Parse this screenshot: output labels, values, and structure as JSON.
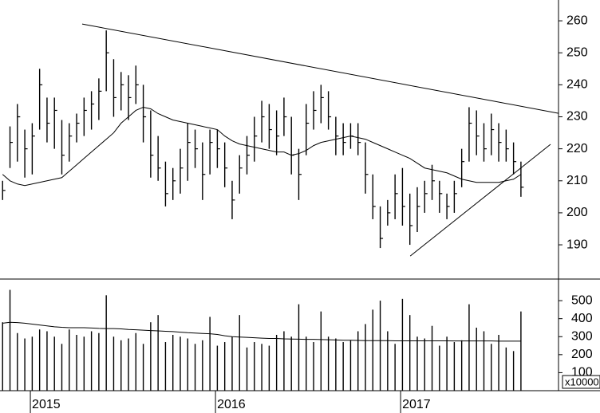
{
  "chart_data": [
    {
      "type": "hlc",
      "x": [
        2014.85,
        2014.89,
        2014.93,
        2014.97,
        2015.01,
        2015.05,
        2015.09,
        2015.13,
        2015.17,
        2015.21,
        2015.25,
        2015.29,
        2015.33,
        2015.37,
        2015.41,
        2015.45,
        2015.49,
        2015.53,
        2015.57,
        2015.61,
        2015.65,
        2015.69,
        2015.73,
        2015.77,
        2015.81,
        2015.85,
        2015.89,
        2015.93,
        2015.97,
        2016.01,
        2016.05,
        2016.09,
        2016.13,
        2016.17,
        2016.21,
        2016.25,
        2016.29,
        2016.33,
        2016.37,
        2016.41,
        2016.45,
        2016.49,
        2016.53,
        2016.57,
        2016.61,
        2016.65,
        2016.69,
        2016.73,
        2016.77,
        2016.81,
        2016.85,
        2016.89,
        2016.93,
        2016.97,
        2017.01,
        2017.05,
        2017.09,
        2017.13,
        2017.17,
        2017.21,
        2017.25,
        2017.29,
        2017.33,
        2017.37,
        2017.41,
        2017.45,
        2017.49,
        2017.53,
        2017.57,
        2017.61,
        2017.65
      ],
      "high": [
        210,
        227,
        234,
        226,
        228,
        245,
        236,
        236,
        229,
        228,
        231,
        236,
        238,
        242,
        257,
        248,
        244,
        243,
        246,
        240,
        232,
        224,
        216,
        214,
        220,
        228,
        226,
        222,
        226,
        226,
        222,
        210,
        218,
        224,
        230,
        235,
        234,
        232,
        236,
        230,
        220,
        234,
        238,
        240,
        238,
        230,
        228,
        228,
        228,
        222,
        212,
        202,
        204,
        212,
        214,
        206,
        208,
        210,
        215,
        210,
        206,
        210,
        220,
        233,
        232,
        228,
        231,
        228,
        226,
        222,
        216
      ],
      "low": [
        204,
        214,
        216,
        211,
        212,
        226,
        222,
        220,
        212,
        216,
        222,
        224,
        226,
        229,
        238,
        230,
        232,
        229,
        234,
        222,
        211,
        210,
        202,
        204,
        206,
        210,
        214,
        204,
        212,
        214,
        208,
        198,
        206,
        212,
        216,
        222,
        220,
        218,
        224,
        212,
        204,
        218,
        226,
        228,
        226,
        218,
        218,
        220,
        218,
        206,
        198,
        189,
        196,
        198,
        196,
        190,
        194,
        200,
        204,
        200,
        198,
        200,
        208,
        216,
        218,
        216,
        218,
        216,
        216,
        212,
        205
      ],
      "close": [
        207,
        222,
        230,
        220,
        224,
        240,
        228,
        232,
        218,
        224,
        228,
        232,
        234,
        238,
        250,
        236,
        240,
        236,
        240,
        230,
        218,
        214,
        206,
        210,
        214,
        222,
        220,
        212,
        222,
        220,
        214,
        204,
        214,
        218,
        224,
        230,
        226,
        224,
        230,
        218,
        212,
        228,
        232,
        236,
        230,
        224,
        222,
        224,
        222,
        212,
        202,
        192,
        200,
        206,
        202,
        196,
        202,
        206,
        210,
        206,
        202,
        206,
        216,
        228,
        224,
        220,
        226,
        222,
        220,
        216,
        208
      ],
      "ma": [
        212,
        210,
        209,
        208.5,
        209,
        209.5,
        210,
        210.5,
        211,
        213,
        215,
        217,
        219,
        221,
        223,
        225,
        228,
        230,
        232,
        233,
        232.5,
        231,
        230,
        229,
        228.5,
        228,
        227.5,
        227,
        226.5,
        226,
        224,
        222.5,
        221.5,
        221,
        220.5,
        220,
        219.5,
        219,
        219,
        218,
        218.5,
        219.5,
        221,
        222,
        222.5,
        223,
        223.5,
        224,
        223.5,
        223,
        222,
        221,
        220,
        219,
        218,
        217,
        215.5,
        214,
        213.5,
        213,
        212.5,
        211.5,
        210.5,
        210,
        209.5,
        209.5,
        209.5,
        209.5,
        210,
        210.5,
        212
      ],
      "trendlines": [
        {
          "x": [
            2015.28,
            2017.853
          ],
          "y": [
            259,
            231.1
          ]
        },
        {
          "x": [
            2017.052,
            2017.81
          ],
          "y": [
            186.5,
            221.4
          ]
        }
      ],
      "xlim": [
        2014.836,
        2017.853
      ],
      "ylim": [
        179.3,
        266.5
      ],
      "yticks": [
        190,
        200,
        210,
        220,
        230,
        240,
        250,
        260
      ]
    },
    {
      "type": "volume",
      "axis_label": "x10000",
      "values": [
        380,
        560,
        320,
        290,
        300,
        340,
        330,
        300,
        260,
        340,
        310,
        300,
        330,
        320,
        530,
        300,
        280,
        290,
        320,
        260,
        380,
        420,
        270,
        310,
        300,
        290,
        260,
        280,
        410,
        250,
        270,
        300,
        420,
        240,
        270,
        260,
        250,
        310,
        330,
        300,
        480,
        300,
        270,
        440,
        300,
        290,
        270,
        280,
        330,
        370,
        450,
        500,
        330,
        260,
        510,
        420,
        300,
        290,
        360,
        250,
        300,
        270,
        280,
        480,
        350,
        330,
        260,
        310,
        240,
        220,
        440
      ],
      "ma": [
        375,
        380,
        378,
        375,
        370,
        365,
        360,
        355,
        352,
        350,
        350,
        350,
        348,
        346,
        345,
        345,
        343,
        340,
        338,
        336,
        334,
        332,
        330,
        328,
        325,
        322,
        320,
        318,
        316,
        312,
        305,
        300,
        298,
        296,
        294,
        292,
        290,
        290,
        288,
        287,
        286,
        285,
        285,
        284,
        283,
        282,
        280,
        280,
        279,
        278,
        278,
        278,
        278,
        277,
        277,
        277,
        277,
        277,
        277,
        277,
        277,
        276,
        276,
        276,
        276,
        276,
        276,
        275,
        275,
        275,
        275
      ],
      "ylim": [
        0,
        620
      ],
      "yticks": [
        100,
        200,
        300,
        400,
        500
      ],
      "xticks": [
        2015,
        2016,
        2017
      ]
    }
  ]
}
